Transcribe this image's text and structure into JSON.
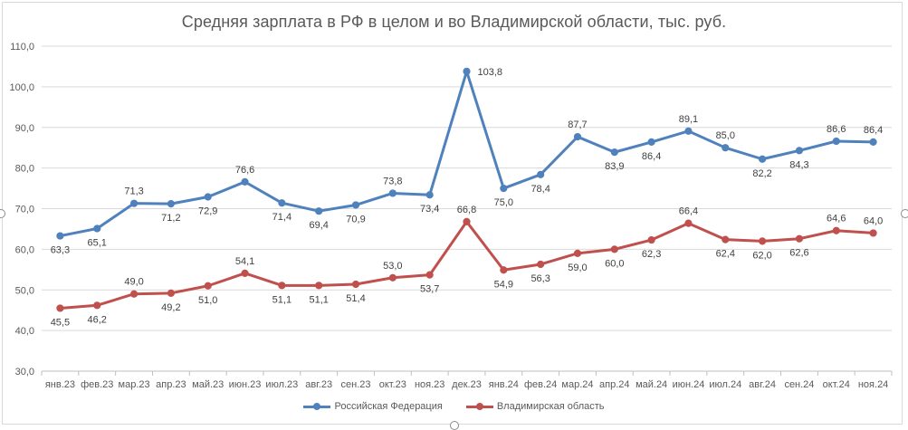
{
  "chart_data": {
    "type": "line",
    "title": "Средняя зарплата в РФ в целом и во Владимирской области, тыс. руб.",
    "xlabel": "",
    "ylabel": "",
    "ylim": [
      30,
      110
    ],
    "y_ticks": [
      "30,0",
      "40,0",
      "50,0",
      "60,0",
      "70,0",
      "80,0",
      "90,0",
      "100,0",
      "110,0"
    ],
    "grid": true,
    "legend_position": "bottom",
    "categories": [
      "янв.23",
      "фев.23",
      "мар.23",
      "апр.23",
      "май.23",
      "июн.23",
      "июл.23",
      "авг.23",
      "сен.23",
      "окт.23",
      "ноя.23",
      "дек.23",
      "янв.24",
      "фев.24",
      "мар.24",
      "апр.24",
      "май.24",
      "июн.24",
      "июл.24",
      "авг.24",
      "сен.24",
      "окт.24",
      "ноя.24"
    ],
    "series": [
      {
        "name": "Российская Федерация",
        "color": "#4f81bd",
        "values": [
          63.3,
          65.1,
          71.3,
          71.2,
          72.9,
          76.6,
          71.4,
          69.4,
          70.9,
          73.8,
          73.4,
          103.8,
          75.0,
          78.4,
          87.7,
          83.9,
          86.4,
          89.1,
          85.0,
          82.2,
          84.3,
          86.6,
          86.4
        ],
        "labels": [
          "63,3",
          "65,1",
          "71,3",
          "71,2",
          "72,9",
          "76,6",
          "71,4",
          "69,4",
          "70,9",
          "73,8",
          "73,4",
          "103,8",
          "75,0",
          "78,4",
          "87,7",
          "83,9",
          "86,4",
          "89,1",
          "85,0",
          "82,2",
          "84,3",
          "86,6",
          "86,4"
        ]
      },
      {
        "name": "Владимирская область",
        "color": "#c0504d",
        "values": [
          45.5,
          46.2,
          49.0,
          49.2,
          51.0,
          54.1,
          51.1,
          51.1,
          51.4,
          53.0,
          53.7,
          66.8,
          54.9,
          56.3,
          59.0,
          60.0,
          62.3,
          66.4,
          62.4,
          62.0,
          62.6,
          64.6,
          64.0
        ],
        "labels": [
          "45,5",
          "46,2",
          "49,0",
          "49,2",
          "51,0",
          "54,1",
          "51,1",
          "51,1",
          "51,4",
          "53,0",
          "53,7",
          "66,8",
          "54,9",
          "56,3",
          "59,0",
          "60,0",
          "62,3",
          "66,4",
          "62,4",
          "62,0",
          "62,6",
          "64,6",
          "64,0"
        ]
      }
    ]
  }
}
